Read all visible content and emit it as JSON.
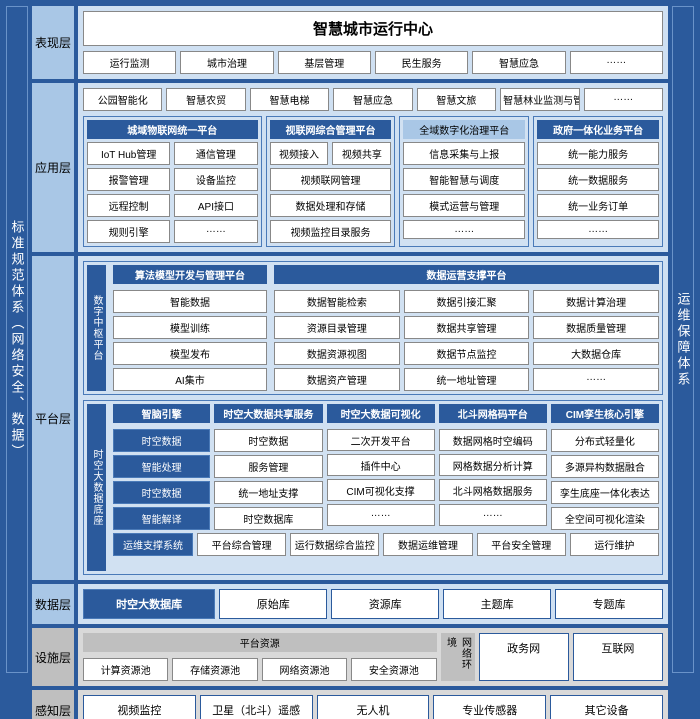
{
  "colors": {
    "brand": "#2b5a9c",
    "light": "#cfe0f2",
    "label": "#a9c7e6",
    "gray": "#d9d9d9",
    "white": "#ffffff"
  },
  "pillar_left": "标准规范体系（网络安全、数据）",
  "pillar_right": "运维保障体系",
  "l1": {
    "name": "表现层",
    "title": "智慧城市运行中心",
    "tabs": [
      "运行监测",
      "城市治理",
      "基层管理",
      "民生服务",
      "智慧应急",
      "……"
    ]
  },
  "l2": {
    "name": "应用层",
    "apps": [
      "公园智能化",
      "智慧农贸",
      "智慧电梯",
      "智慧应急",
      "智慧文旅",
      "智慧林业监测与管理",
      "……"
    ],
    "g1": {
      "t": "城域物联网统一平台",
      "cols": [
        [
          "IoT Hub管理",
          "报警管理",
          "远程控制",
          "规则引擎"
        ],
        [
          "通信管理",
          "设备监控",
          "API接口",
          "……"
        ]
      ]
    },
    "g2": {
      "t": "视联网综合管理平台",
      "items": [
        "视频接入 | 视频共享",
        "视频联网管理",
        "数据处理和存储",
        "视频监控目录服务"
      ],
      "first": [
        "视频接入",
        "视频共享"
      ]
    },
    "g3": {
      "t": "全域数字化治理平台",
      "items": [
        "信息采集与上报",
        "智能智慧与调度",
        "模式运营与管理",
        "……"
      ]
    },
    "g4": {
      "t": "政府一体化业务平台",
      "items": [
        "统一能力服务",
        "统一数据服务",
        "统一业务订单",
        "……"
      ]
    }
  },
  "l3": {
    "name": "平台层",
    "top": {
      "side": "数字中枢平台",
      "g1": {
        "t": "算法模型开发与管理平台",
        "items": [
          "智能数据",
          "模型训练",
          "模型发布",
          "AI集市"
        ]
      },
      "g2": {
        "t": "数据运营支撑平台",
        "cols": [
          [
            "数据智能检索",
            "资源目录管理",
            "数据资源视图",
            "数据资产管理"
          ],
          [
            "数据引接汇聚",
            "数据共享管理",
            "数据节点监控",
            "统一地址管理"
          ],
          [
            "数据计算治理",
            "数据质量管理",
            "大数据仓库",
            "……"
          ]
        ]
      }
    },
    "bot": {
      "side": "时空大数据底座",
      "g1": {
        "t": "智脑引擎",
        "items": [
          "时空数据",
          "智能处理",
          "时空数据",
          "智能解译"
        ]
      },
      "g2": {
        "t": "时空大数据共享服务",
        "items": [
          "时空数据",
          "服务管理",
          "统一地址支撑",
          "时空数据库"
        ]
      },
      "g3": {
        "t": "时空大数据可视化",
        "items": [
          "二次开发平台",
          "插件中心",
          "CIM可视化支撑",
          "……"
        ]
      },
      "g4": {
        "t": "北斗网格码平台",
        "items": [
          "数据网格时空编码",
          "网格数据分析计算",
          "北斗网格数据服务",
          "……"
        ]
      },
      "g5": {
        "t": "CIM孪生核心引擎",
        "items": [
          "分布式轻量化",
          "多源异构数据融合",
          "孪生底座一体化表达",
          "全空间可视化渲染"
        ]
      },
      "ops": {
        "t": "运维支撑系统",
        "items": [
          "平台综合管理",
          "运行数据综合监控",
          "数据运维管理",
          "平台安全管理",
          "运行维护"
        ]
      }
    }
  },
  "l4": {
    "name": "数据层",
    "items": [
      "时空大数据库",
      "原始库",
      "资源库",
      "主题库",
      "专题库"
    ]
  },
  "l5": {
    "name": "设施层",
    "g": {
      "t": "平台资源",
      "items": [
        "计算资源池",
        "存储资源池",
        "网络资源池",
        "安全资源池"
      ]
    },
    "net": {
      "t": "网络环境",
      "items": [
        "政务网",
        "互联网"
      ]
    }
  },
  "l6": {
    "name": "感知层",
    "items": [
      "视频监控",
      "卫星（北斗）遥感",
      "无人机",
      "专业传感器",
      "其它设备"
    ]
  }
}
